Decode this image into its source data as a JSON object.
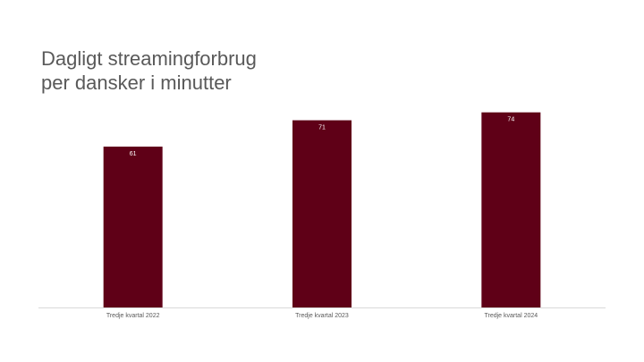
{
  "chart_data": {
    "type": "bar",
    "title": "Dagligt streamingforbrug per dansker i minutter",
    "categories": [
      "Tredje kvartal 2022",
      "Tredje kvartal 2023",
      "Tredje kvartal 2024"
    ],
    "values": [
      61,
      71,
      74
    ],
    "color": "#5f0017"
  }
}
